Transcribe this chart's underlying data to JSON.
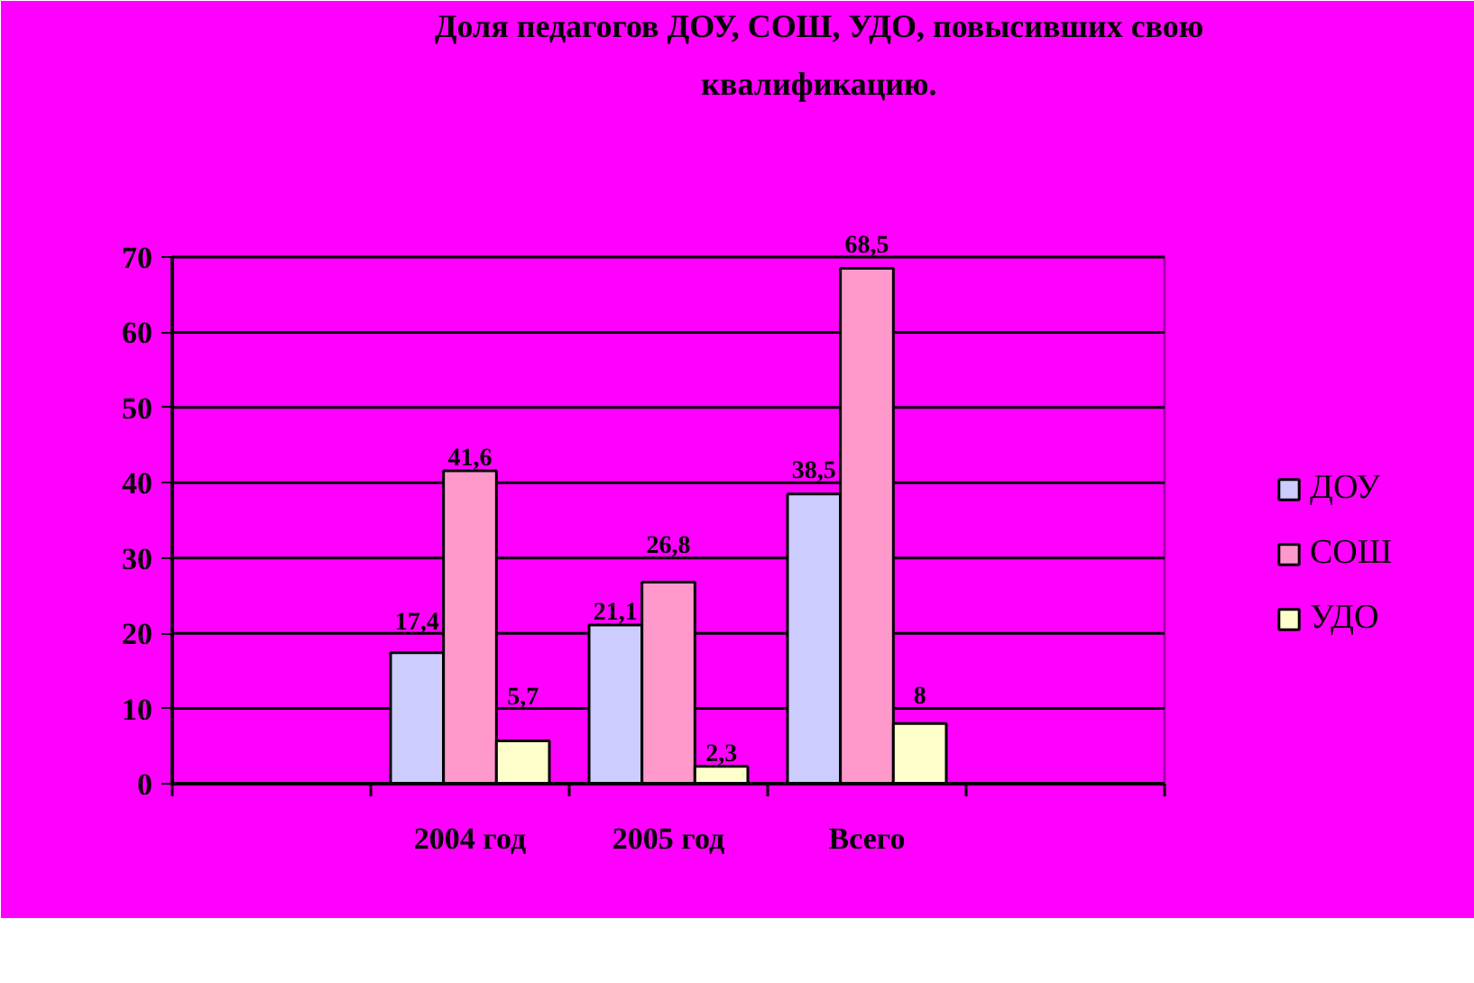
{
  "chart_data": {
    "type": "bar",
    "title": "Доля педагогов ДОУ, СОШ, УДО, повысивших свою квалификацию.",
    "categories": [
      null,
      "2004 год",
      "2005 год",
      "Всего",
      null
    ],
    "series": [
      {
        "name": "ДОУ",
        "color": "#ccccff",
        "values": [
          null,
          17.4,
          21.1,
          38.5,
          null
        ],
        "value_labels": [
          null,
          "17,4",
          "21,1",
          "38,5",
          null
        ]
      },
      {
        "name": "СОШ",
        "color": "#ff99cc",
        "values": [
          null,
          41.6,
          26.8,
          68.5,
          null
        ],
        "value_labels": [
          null,
          "41,6",
          "26,8",
          "68,5",
          null
        ]
      },
      {
        "name": "УДО",
        "color": "#ffffcc",
        "values": [
          null,
          5.7,
          2.3,
          8,
          null
        ],
        "value_labels": [
          null,
          "5,7",
          "2,3",
          "8",
          null
        ]
      }
    ],
    "ylim": [
      0,
      70
    ],
    "yticks": [
      0,
      10,
      20,
      30,
      40,
      50,
      60,
      70
    ],
    "grid": "y",
    "legend": "right"
  }
}
